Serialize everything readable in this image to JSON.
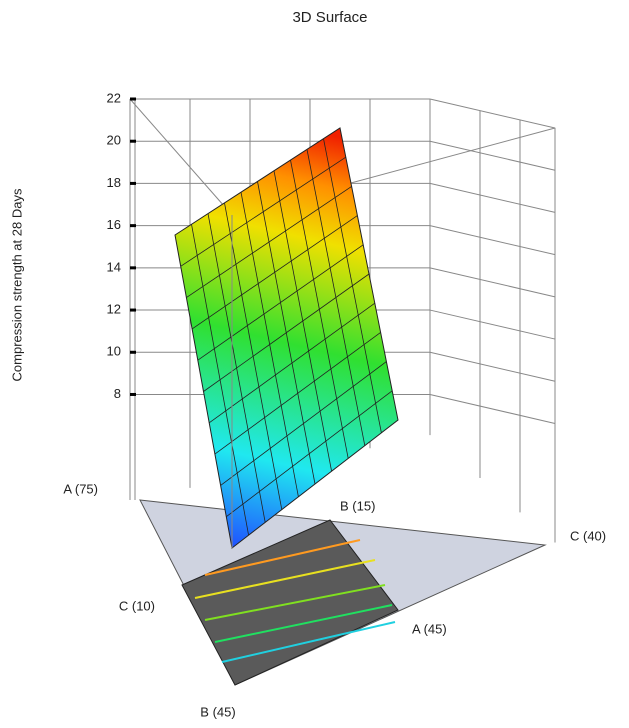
{
  "chart_data": {
    "type": "surface3d",
    "title": "3D Surface",
    "zlabel": "Compression strength at 28 Days",
    "zlim": [
      3,
      22
    ],
    "zticks": [
      8,
      10,
      12,
      14,
      16,
      18,
      20,
      22
    ],
    "vertex_labels": [
      "A (75)",
      "B (15)",
      "C (40)",
      "C (10)",
      "A (45)",
      "B (45)"
    ]
  }
}
